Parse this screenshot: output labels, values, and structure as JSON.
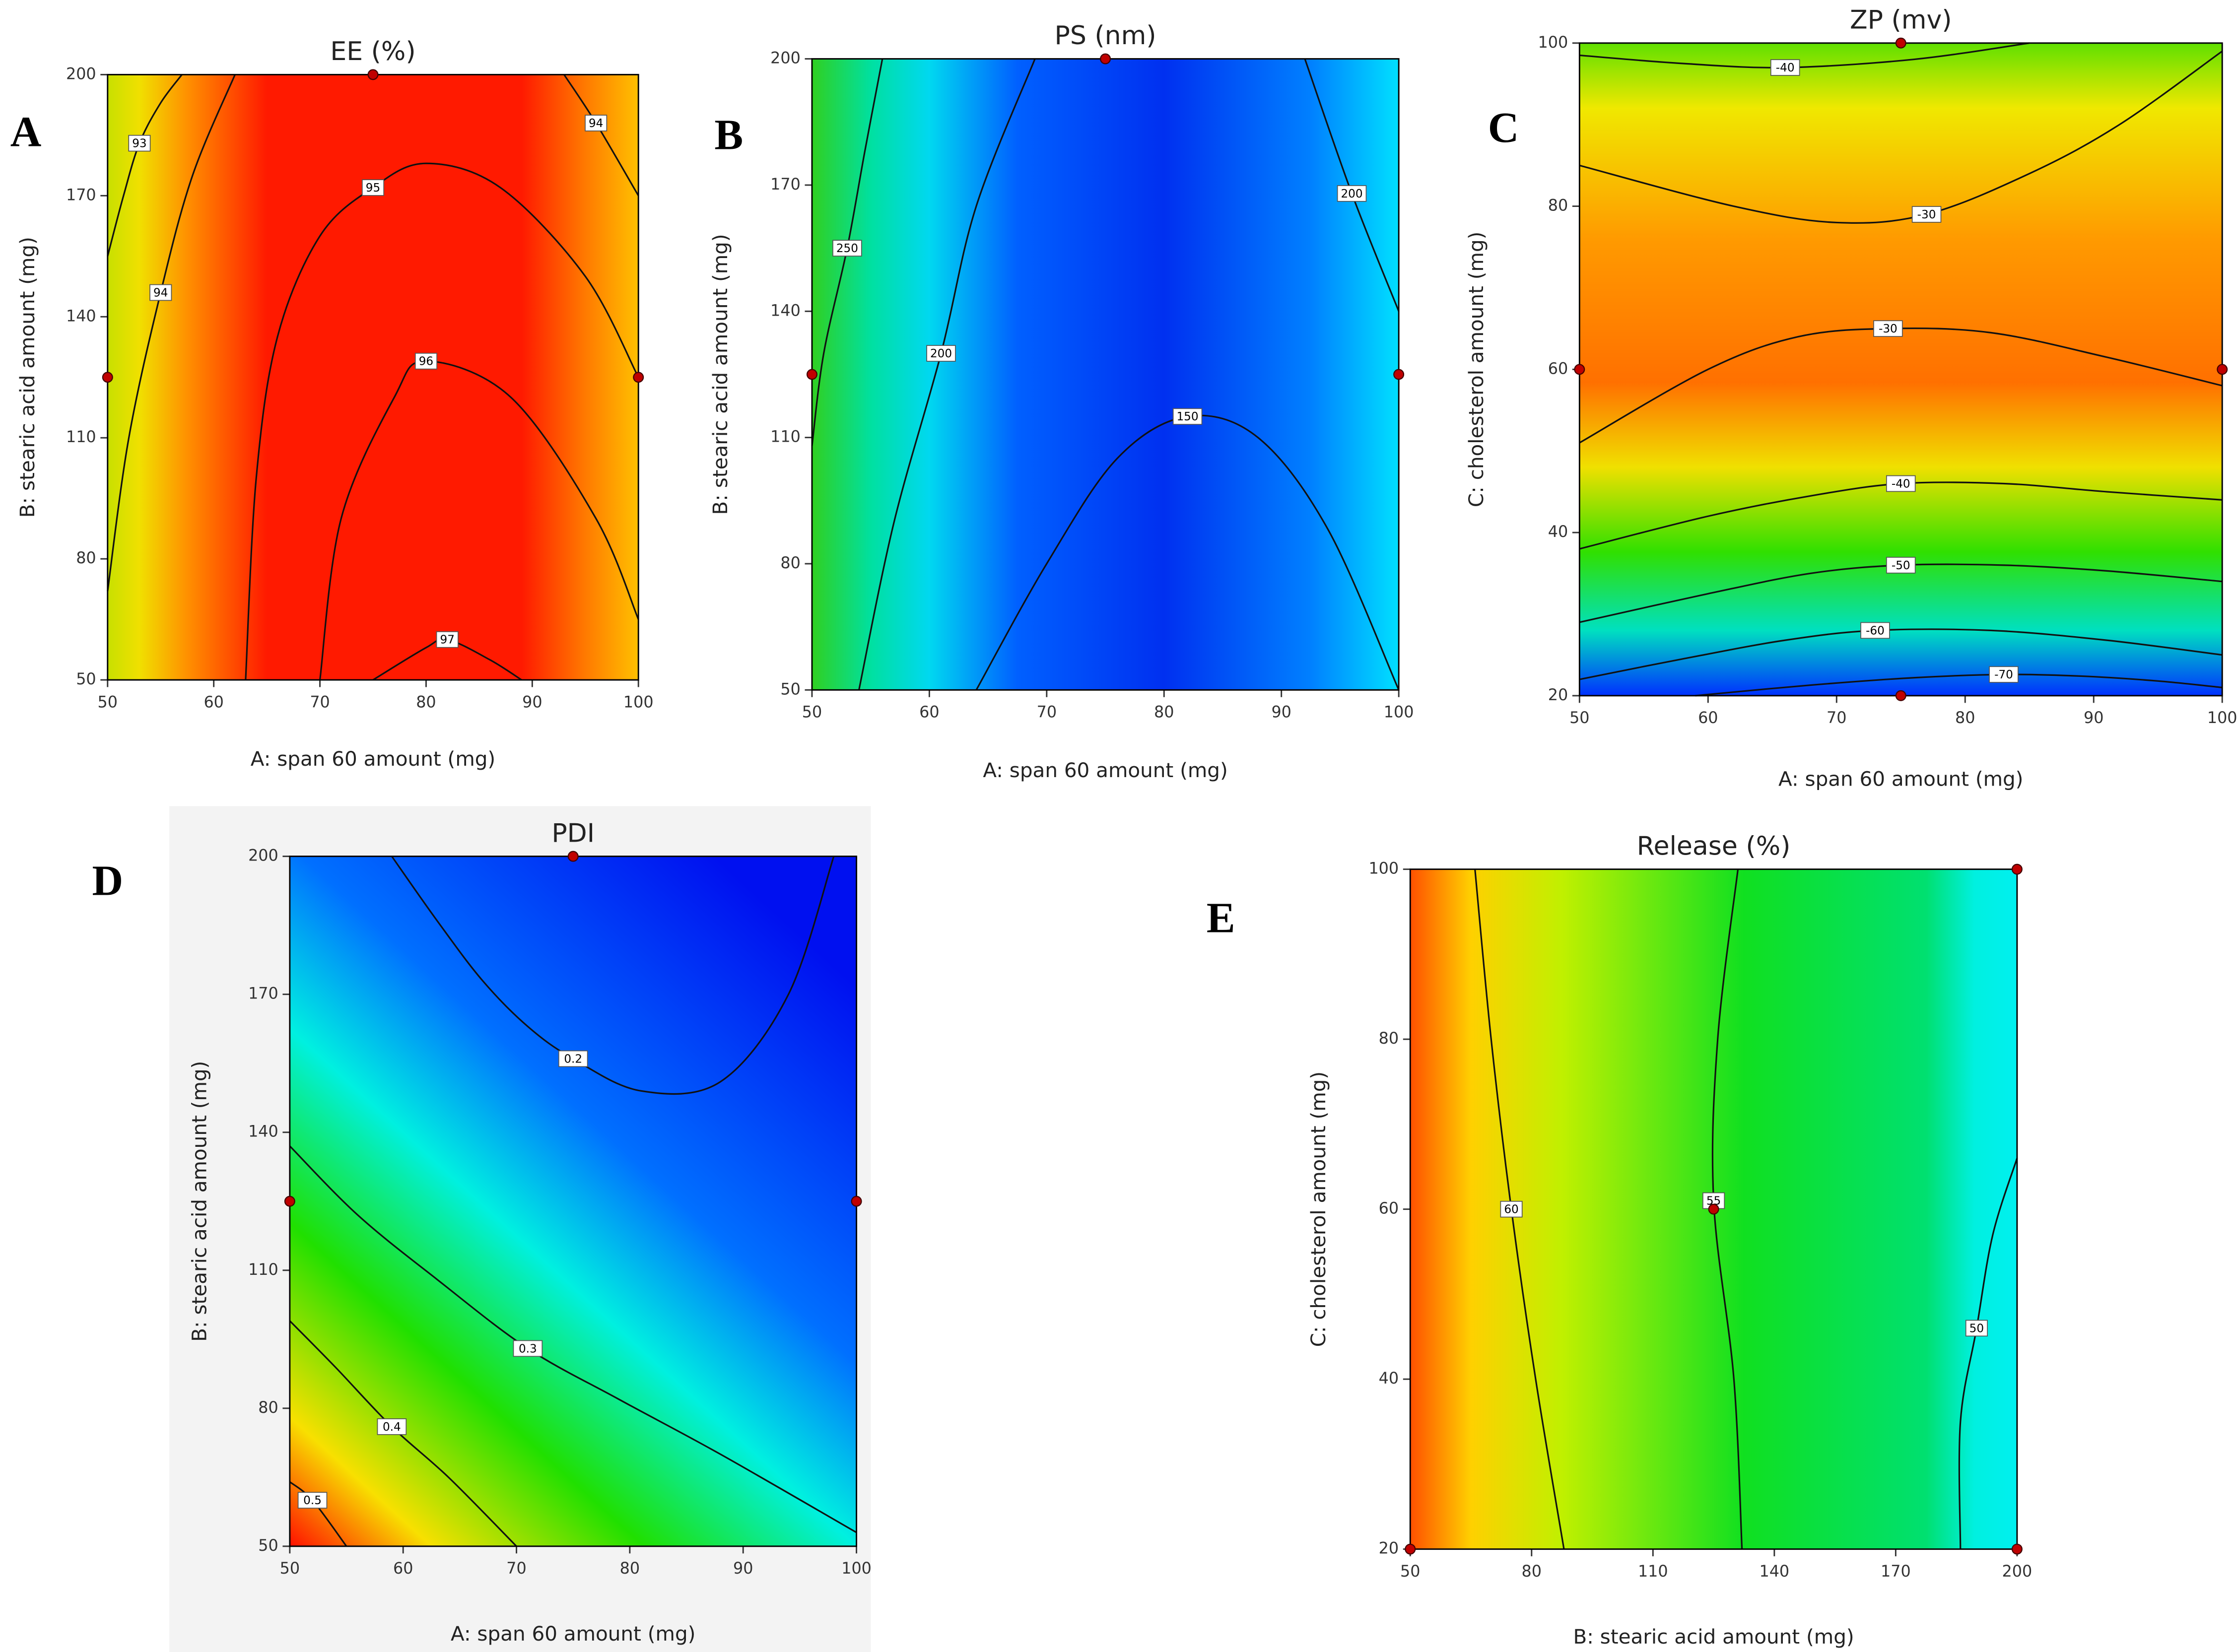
{
  "chart_data": [
    {
      "type": "contour",
      "panel": "A",
      "title": "EE (%)",
      "x_label": "A: span 60 amount (mg)",
      "y_label": "B: stearic acid amount (mg)",
      "xlim": [
        50,
        100
      ],
      "xticks": [
        50,
        60,
        70,
        80,
        90,
        100
      ],
      "ylim": [
        50,
        200
      ],
      "yticks": [
        50,
        80,
        110,
        140,
        170,
        200
      ],
      "contours": [
        {
          "level": 93,
          "x": [
            50,
            51.5,
            53,
            55,
            57
          ],
          "y": [
            155,
            170,
            183,
            193,
            200
          ]
        },
        {
          "level": 94,
          "x": [
            50,
            52,
            55,
            58,
            62
          ],
          "y": [
            72,
            110,
            146,
            175,
            200
          ]
        },
        {
          "level": 94,
          "x": [
            93,
            96,
            100
          ],
          "y": [
            200,
            188,
            170
          ]
        },
        {
          "level": 95,
          "x": [
            63,
            64,
            66,
            70,
            75,
            80,
            87,
            95,
            100
          ],
          "y": [
            50,
            100,
            135,
            160,
            172,
            178,
            172,
            150,
            125
          ]
        },
        {
          "level": 96,
          "x": [
            70,
            72,
            77,
            80,
            88,
            96,
            100
          ],
          "y": [
            50,
            90,
            120,
            129,
            120,
            90,
            65
          ]
        },
        {
          "level": 97,
          "x": [
            75,
            80,
            82,
            86,
            89
          ],
          "y": [
            50,
            58,
            60,
            55,
            50
          ]
        }
      ],
      "points": {
        "x": [
          50,
          100,
          75
        ],
        "y": [
          125,
          125,
          200
        ]
      }
    },
    {
      "type": "contour",
      "panel": "B",
      "title": "PS (nm)",
      "x_label": "A: span 60 amount (mg)",
      "y_label": "B: stearic acid amount (mg)",
      "xlim": [
        50,
        100
      ],
      "xticks": [
        50,
        60,
        70,
        80,
        90,
        100
      ],
      "ylim": [
        50,
        200
      ],
      "yticks": [
        50,
        80,
        110,
        140,
        170,
        200
      ],
      "contours": [
        {
          "level": 250,
          "x": [
            50,
            51,
            53,
            54.5,
            56
          ],
          "y": [
            108,
            130,
            155,
            178,
            200
          ]
        },
        {
          "level": 200,
          "x": [
            54,
            57,
            61,
            64,
            69
          ],
          "y": [
            50,
            90,
            130,
            165,
            200
          ]
        },
        {
          "level": 200,
          "x": [
            92,
            96,
            100
          ],
          "y": [
            200,
            168,
            140
          ]
        },
        {
          "level": 150,
          "x": [
            64,
            70,
            76,
            82,
            88,
            94,
            100
          ],
          "y": [
            50,
            80,
            105,
            115,
            110,
            88,
            50
          ]
        }
      ],
      "points": {
        "x": [
          50,
          100,
          75
        ],
        "y": [
          125,
          125,
          200
        ]
      }
    },
    {
      "type": "contour",
      "panel": "C",
      "title": "ZP (mv)",
      "x_label": "A: span 60 amount (mg)",
      "y_label": "C: cholesterol amount (mg)",
      "xlim": [
        50,
        100
      ],
      "xticks": [
        50,
        60,
        70,
        80,
        90,
        100
      ],
      "ylim": [
        20,
        100
      ],
      "yticks": [
        20,
        40,
        60,
        80,
        100
      ],
      "contours": [
        {
          "level": -40,
          "x": [
            50,
            58,
            66,
            76,
            85
          ],
          "y": [
            98.5,
            97.5,
            97,
            98,
            100
          ]
        },
        {
          "level": -30,
          "x": [
            50,
            62,
            70,
            77,
            85,
            92,
            100
          ],
          "y": [
            85,
            80,
            78,
            79,
            84,
            90,
            99
          ]
        },
        {
          "level": -30,
          "x": [
            50,
            60,
            67,
            74,
            82,
            91,
            100
          ],
          "y": [
            51,
            60,
            64,
            65,
            64.5,
            61.5,
            58
          ]
        },
        {
          "level": -40,
          "x": [
            50,
            60,
            68,
            75,
            83,
            91,
            100
          ],
          "y": [
            38,
            42,
            44.5,
            46,
            46,
            45,
            44
          ]
        },
        {
          "level": -50,
          "x": [
            50,
            60,
            68,
            75,
            83,
            91,
            100
          ],
          "y": [
            29,
            32.5,
            35,
            36,
            36,
            35.3,
            34
          ]
        },
        {
          "level": -60,
          "x": [
            50,
            58,
            66,
            73,
            82,
            91,
            100
          ],
          "y": [
            22,
            24.5,
            26.8,
            28,
            28,
            26.8,
            25
          ]
        },
        {
          "level": -70,
          "x": [
            59,
            68,
            76,
            83,
            89,
            95,
            100
          ],
          "y": [
            20,
            21.3,
            22.2,
            22.6,
            22.4,
            21.8,
            21
          ]
        }
      ],
      "points": {
        "x": [
          50,
          100,
          75,
          75
        ],
        "y": [
          60,
          60,
          100,
          20
        ]
      }
    },
    {
      "type": "contour",
      "panel": "D",
      "title": "PDI",
      "x_label": "A: span 60 amount (mg)",
      "y_label": "B: stearic acid amount (mg)",
      "xlim": [
        50,
        100
      ],
      "xticks": [
        50,
        60,
        70,
        80,
        90,
        100
      ],
      "ylim": [
        50,
        200
      ],
      "yticks": [
        50,
        80,
        110,
        140,
        170,
        200
      ],
      "contours": [
        {
          "level": 0.2,
          "x": [
            59,
            63,
            67,
            71,
            75,
            81,
            88,
            94,
            98
          ],
          "y": [
            200,
            186,
            173,
            163,
            156,
            149,
            151,
            170,
            200
          ]
        },
        {
          "level": 0.3,
          "x": [
            50,
            56,
            63,
            71,
            79,
            88,
            100
          ],
          "y": [
            137,
            122,
            108,
            93,
            82,
            70,
            53
          ]
        },
        {
          "level": 0.4,
          "x": [
            50,
            54,
            59,
            64,
            70
          ],
          "y": [
            99,
            89,
            76,
            65,
            50
          ]
        },
        {
          "level": 0.5,
          "x": [
            50,
            52,
            55
          ],
          "y": [
            64,
            60,
            50
          ]
        }
      ],
      "points": {
        "x": [
          50,
          100,
          75
        ],
        "y": [
          125,
          125,
          200
        ]
      }
    },
    {
      "type": "contour",
      "panel": "E",
      "title": "Release (%)",
      "x_label": "B: stearic acid amount (mg)",
      "y_label": "C: cholesterol amount (mg)",
      "xlim": [
        50,
        200
      ],
      "xticks": [
        50,
        80,
        110,
        140,
        170,
        200
      ],
      "ylim": [
        20,
        100
      ],
      "yticks": [
        20,
        40,
        60,
        80,
        100
      ],
      "contours": [
        {
          "level": 60,
          "x": [
            66,
            70,
            75,
            81,
            88
          ],
          "y": [
            100,
            80,
            60,
            40,
            20
          ]
        },
        {
          "level": 55,
          "x": [
            131,
            126,
            125,
            130,
            132
          ],
          "y": [
            100,
            80,
            61,
            40,
            20
          ]
        },
        {
          "level": 50,
          "x": [
            186,
            186,
            190,
            194,
            200
          ],
          "y": [
            20,
            35,
            46,
            57,
            66
          ]
        }
      ],
      "points": {
        "x": [
          50,
          200,
          125,
          200
        ],
        "y": [
          20,
          20,
          60,
          100
        ]
      }
    }
  ]
}
